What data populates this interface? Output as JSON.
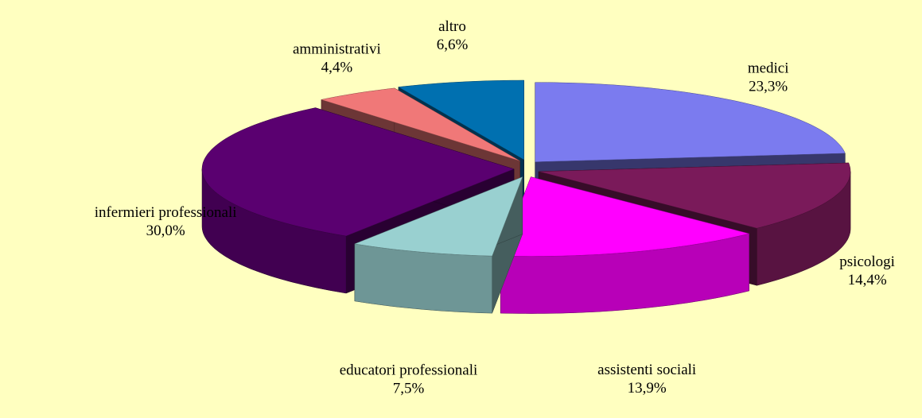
{
  "chart_data": {
    "type": "pie",
    "categories": [
      "medici",
      "psicologi",
      "assistenti sociali",
      "educatori professionali",
      "infermieri professionali",
      "amministrativi",
      "altro"
    ],
    "values": [
      23.3,
      14.4,
      13.9,
      7.5,
      30.0,
      4.4,
      6.6
    ],
    "value_labels": [
      "23,3%",
      "14,4%",
      "13,9%",
      "7,5%",
      "30,0%",
      "4,4%",
      "6,6%"
    ],
    "colors": [
      "#7b7bef",
      "#7a1a5a",
      "#ff00ff",
      "#99d0d0",
      "#5a0070",
      "#f07878",
      "#0070b0"
    ]
  }
}
